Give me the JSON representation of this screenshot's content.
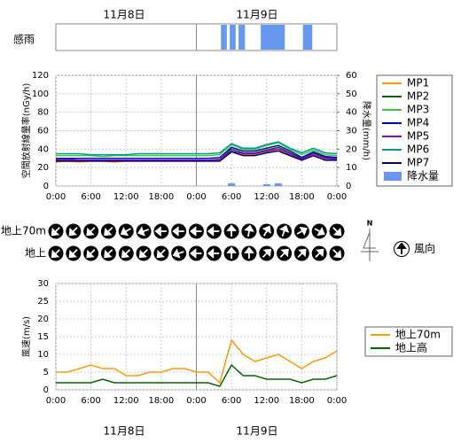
{
  "dates": [
    "11月8日",
    "11月9日"
  ],
  "chart_data": [
    {
      "type": "timeline",
      "label": "感雨",
      "xlim": [
        0,
        48
      ],
      "color": "#6699ee",
      "intervals": [
        [
          28.2,
          29.2
        ],
        [
          29.7,
          30.7
        ],
        [
          31.2,
          32.3
        ],
        [
          35.0,
          39.1
        ],
        [
          42.2,
          43.8
        ]
      ]
    },
    {
      "type": "line",
      "ylabel": "空間放射線量率(nGy/h)",
      "y2label": "降水量(mm/h)",
      "xlim": [
        0,
        48
      ],
      "ylim": [
        0,
        120
      ],
      "y2lim": [
        0,
        60
      ],
      "grid": true,
      "xticks": [
        {
          "value": 0,
          "label": "0:00"
        },
        {
          "value": 6,
          "label": "6:00"
        },
        {
          "value": 12,
          "label": "12:00"
        },
        {
          "value": 18,
          "label": "18:00"
        },
        {
          "value": 24,
          "label": "0:00"
        },
        {
          "value": 30,
          "label": "6:00"
        },
        {
          "value": 36,
          "label": "12:00"
        },
        {
          "value": 42,
          "label": "18:00"
        },
        {
          "value": 48,
          "label": "0:00"
        }
      ],
      "yticks": [
        0,
        20,
        40,
        60,
        80,
        100,
        120
      ],
      "y2ticks": [
        0,
        10,
        20,
        30,
        40,
        50,
        60
      ],
      "x": [
        0,
        2,
        4,
        6,
        8,
        10,
        12,
        14,
        16,
        18,
        20,
        22,
        24,
        26,
        28,
        30,
        32,
        34,
        36,
        38,
        40,
        42,
        44,
        46,
        48
      ],
      "series": [
        {
          "name": "MP1",
          "color": "#ff9900",
          "values": [
            26,
            27,
            26,
            27,
            27,
            26,
            27,
            27,
            28,
            27,
            27,
            27,
            27,
            27,
            28,
            38,
            34,
            34,
            37,
            40,
            34,
            28,
            34,
            29,
            29
          ]
        },
        {
          "name": "MP2",
          "color": "#006600",
          "values": [
            28,
            28,
            28,
            28,
            28,
            28,
            28,
            28,
            28,
            28,
            28,
            28,
            28,
            28,
            29,
            40,
            36,
            36,
            39,
            42,
            36,
            30,
            36,
            31,
            30
          ]
        },
        {
          "name": "MP3",
          "color": "#33cc33",
          "values": [
            33,
            33,
            33,
            33,
            32,
            33,
            33,
            33,
            33,
            33,
            33,
            33,
            33,
            33,
            34,
            45,
            40,
            40,
            44,
            47,
            40,
            34,
            39,
            34,
            33
          ]
        },
        {
          "name": "MP4",
          "color": "#0000cc",
          "values": [
            30,
            30,
            30,
            30,
            30,
            30,
            30,
            30,
            30,
            30,
            30,
            30,
            30,
            30,
            31,
            42,
            38,
            38,
            41,
            44,
            38,
            31,
            37,
            32,
            31
          ]
        },
        {
          "name": "MP5",
          "color": "#9900cc",
          "values": [
            29,
            29,
            28,
            28,
            28,
            28,
            28,
            28,
            28,
            28,
            28,
            28,
            28,
            28,
            29,
            38,
            35,
            35,
            38,
            40,
            35,
            29,
            35,
            30,
            29
          ]
        },
        {
          "name": "MP6",
          "color": "#009999",
          "values": [
            35,
            35,
            35,
            34,
            34,
            34,
            34,
            35,
            35,
            35,
            35,
            35,
            35,
            35,
            36,
            46,
            41,
            41,
            45,
            48,
            41,
            36,
            41,
            36,
            35
          ]
        },
        {
          "name": "MP7",
          "color": "#000066",
          "values": [
            27,
            27,
            27,
            27,
            27,
            27,
            27,
            27,
            27,
            27,
            27,
            27,
            27,
            27,
            27,
            37,
            33,
            33,
            36,
            38,
            33,
            28,
            33,
            28,
            28
          ]
        },
        {
          "name": "降水量",
          "color": "#6699ee",
          "axis": "y2",
          "kind": "bar",
          "values": [
            0,
            0,
            0,
            0,
            0,
            0,
            0,
            0,
            0,
            0,
            0,
            0,
            0,
            0,
            0,
            1.5,
            0,
            0,
            1,
            1.5,
            0,
            0,
            0,
            0,
            0
          ]
        }
      ]
    },
    {
      "type": "wind-direction",
      "legend": "風向",
      "north": "N",
      "x": [
        0,
        3,
        6,
        9,
        12,
        15,
        18,
        21,
        24,
        27,
        30,
        33,
        36,
        39,
        42,
        45,
        48
      ],
      "rows": [
        {
          "name": "地上70m",
          "values": [
            225,
            225,
            225,
            225,
            240,
            250,
            270,
            270,
            270,
            270,
            0,
            10,
            30,
            20,
            60,
            120,
            135
          ]
        },
        {
          "name": "地上",
          "values": [
            225,
            225,
            225,
            225,
            225,
            225,
            225,
            250,
            270,
            270,
            0,
            0,
            45,
            45,
            45,
            45,
            135
          ]
        }
      ]
    },
    {
      "type": "line",
      "ylabel": "風速(m/s)",
      "xlim": [
        0,
        48
      ],
      "ylim": [
        0,
        30
      ],
      "grid": true,
      "xticks": [
        {
          "value": 0,
          "label": "0:00"
        },
        {
          "value": 6,
          "label": "6:00"
        },
        {
          "value": 12,
          "label": "12:00"
        },
        {
          "value": 18,
          "label": "18:00"
        },
        {
          "value": 24,
          "label": "0:00"
        },
        {
          "value": 30,
          "label": "6:00"
        },
        {
          "value": 36,
          "label": "12:00"
        },
        {
          "value": 42,
          "label": "18:00"
        },
        {
          "value": 48,
          "label": "0:00"
        }
      ],
      "yticks": [
        0,
        5,
        10,
        15,
        20,
        25,
        30
      ],
      "x": [
        0,
        2,
        4,
        6,
        8,
        10,
        12,
        14,
        16,
        18,
        20,
        22,
        24,
        26,
        28,
        30,
        32,
        34,
        36,
        38,
        40,
        42,
        44,
        46,
        48
      ],
      "series": [
        {
          "name": "地上70m",
          "color": "#ff9900",
          "values": [
            5,
            5,
            6,
            7,
            6,
            6,
            4,
            4,
            5,
            5,
            6,
            6,
            5,
            5,
            2,
            14,
            10,
            8,
            9,
            10,
            8,
            6,
            8,
            9,
            11
          ]
        },
        {
          "name": "地上高",
          "color": "#006600",
          "values": [
            2,
            2,
            2,
            2,
            3,
            2,
            2,
            2,
            2,
            2,
            2,
            2,
            2,
            2,
            1,
            7,
            4,
            4,
            3,
            3,
            3,
            2,
            3,
            3,
            4
          ]
        }
      ]
    }
  ]
}
